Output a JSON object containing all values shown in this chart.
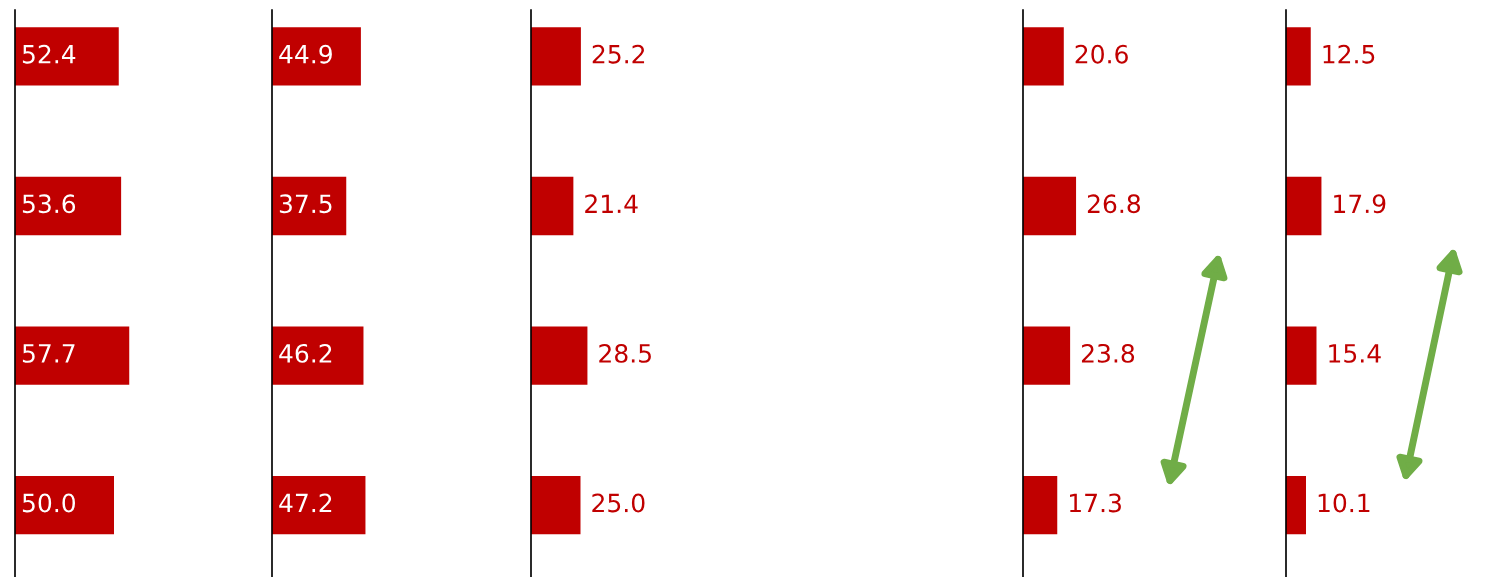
{
  "chart_data": [
    {
      "type": "bar",
      "orientation": "horizontal",
      "categories": [
        null,
        null,
        null,
        null
      ],
      "values": [
        52.4,
        53.6,
        57.7,
        50.0
      ],
      "value_labels": [
        "52.4",
        "53.6",
        "57.7",
        "50.0"
      ],
      "color": "#c00000"
    },
    {
      "type": "bar",
      "orientation": "horizontal",
      "categories": [
        null,
        null,
        null,
        null
      ],
      "values": [
        44.9,
        37.5,
        46.2,
        47.2
      ],
      "value_labels": [
        "44.9",
        "37.5",
        "46.2",
        "47.2"
      ],
      "color": "#c00000"
    },
    {
      "type": "bar",
      "orientation": "horizontal",
      "categories": [
        null,
        null,
        null,
        null
      ],
      "values": [
        25.2,
        21.4,
        28.5,
        25.0
      ],
      "value_labels": [
        "25.2",
        "21.4",
        "28.5",
        "25.0"
      ],
      "color": "#c00000"
    },
    {
      "type": "bar",
      "orientation": "horizontal",
      "categories": [
        null,
        null,
        null,
        null
      ],
      "values": [
        20.6,
        26.8,
        23.8,
        17.3
      ],
      "value_labels": [
        "20.6",
        "26.8",
        "23.8",
        "17.3"
      ],
      "color": "#c00000"
    },
    {
      "type": "bar",
      "orientation": "horizontal",
      "categories": [
        null,
        null,
        null,
        null
      ],
      "values": [
        12.5,
        17.9,
        15.4,
        10.1
      ],
      "value_labels": [
        "12.5",
        "17.9",
        "15.4",
        "10.1"
      ],
      "color": "#c00000"
    }
  ]
}
